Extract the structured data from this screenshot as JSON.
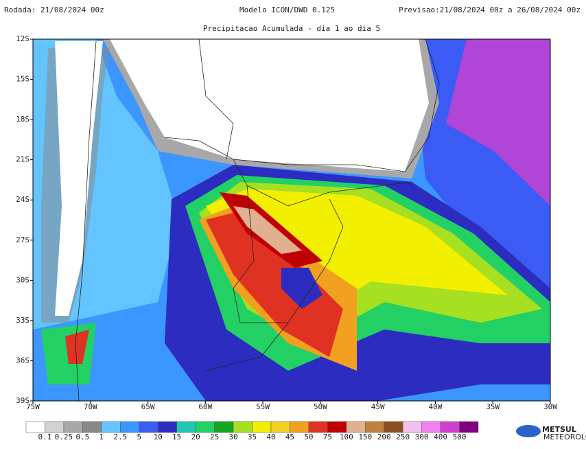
{
  "header": {
    "run": "Rodada: 21/08/2024 00z",
    "model": "Modelo ICON/DWD 0.125",
    "forecast": "Previsao:21/08/2024 00z a 26/08/2024 00z"
  },
  "subtitle": "Precipitacao Acumulada - dia 1 ao dia 5",
  "map": {
    "lat_labels": [
      "12S",
      "15S",
      "18S",
      "21S",
      "24S",
      "27S",
      "30S",
      "33S",
      "36S",
      "39S"
    ],
    "lon_labels": [
      "75W",
      "70W",
      "65W",
      "60W",
      "55W",
      "50W",
      "45W",
      "40W",
      "35W",
      "30W"
    ]
  },
  "colorbar": {
    "labels": [
      "0.1",
      "0.25",
      "0.5",
      "1",
      "2.5",
      "5",
      "10",
      "15",
      "20",
      "25",
      "30",
      "35",
      "40",
      "45",
      "50",
      "75",
      "100",
      "150",
      "200",
      "250",
      "300",
      "400",
      "500"
    ],
    "colors": [
      "#ffffff",
      "#d2d2d2",
      "#a8a8a8",
      "#888888",
      "#64c4ff",
      "#3c96ff",
      "#3a5cf4",
      "#2c2cc0",
      "#20c8b4",
      "#22d064",
      "#14a81e",
      "#a6e020",
      "#f2f000",
      "#f2d024",
      "#f2a020",
      "#e03222",
      "#c00000",
      "#e0b090",
      "#c08040",
      "#8c5020",
      "#f4c0f4",
      "#f080f0",
      "#d040d0",
      "#800080"
    ]
  },
  "logo": {
    "name": "METSUL",
    "tagline": "METEOROLOGIA"
  }
}
